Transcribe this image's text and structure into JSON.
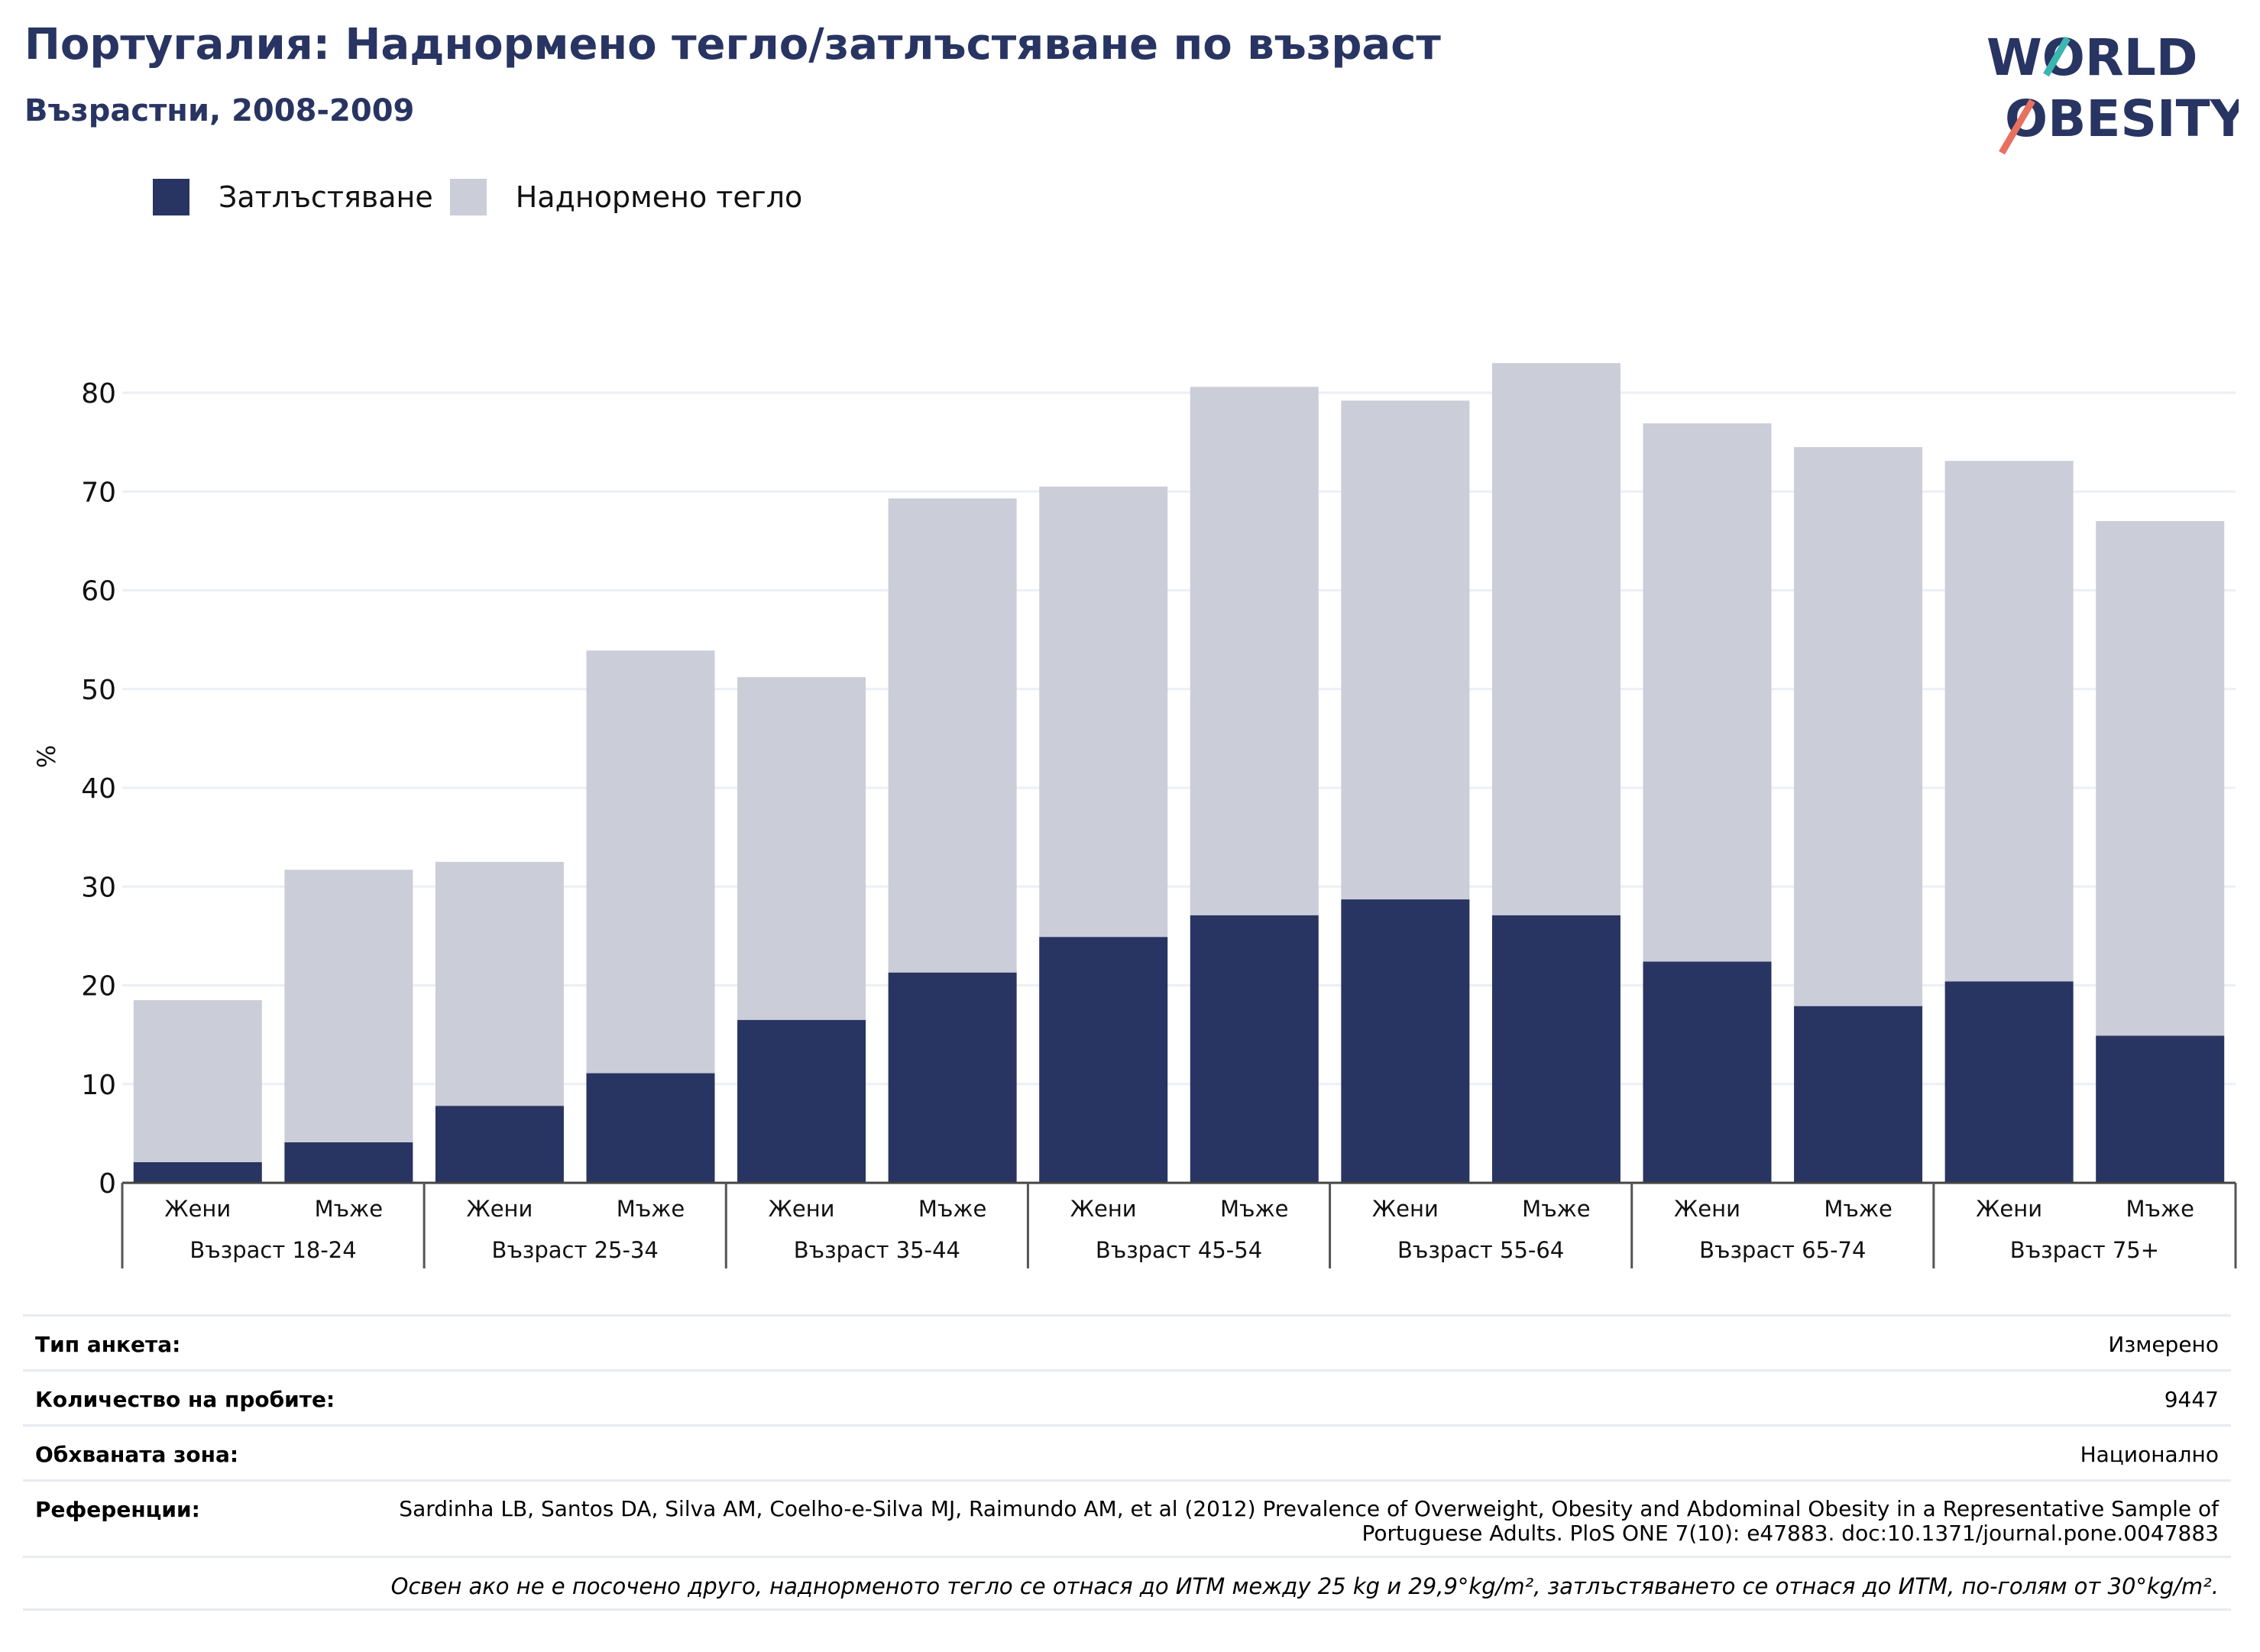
{
  "title": "Португалия: Наднормено тегло/затлъстяване по възраст",
  "subtitle": "Възрастни, 2008-2009",
  "logo": {
    "line1": "WORLD",
    "line2": "OBESITY"
  },
  "legend": [
    {
      "label": "Затлъстяване",
      "color": "#283462"
    },
    {
      "label": "Наднормено тегло",
      "color": "#cbcdd8"
    }
  ],
  "chart_data": {
    "type": "bar",
    "stacked": true,
    "ylabel": "%",
    "ylim": [
      0,
      90
    ],
    "yticks": [
      0,
      10,
      20,
      30,
      40,
      50,
      60,
      70,
      80
    ],
    "grid": true,
    "legend_position": "top-left",
    "groups": [
      "Възраст 18-24",
      "Възраст 25-34",
      "Възраст 35-44",
      "Възраст 45-54",
      "Възраст 55-64",
      "Възраст 65-74",
      "Възраст 75+"
    ],
    "categories": [
      "Жени",
      "Мъже",
      "Жени",
      "Мъже",
      "Жени",
      "Мъже",
      "Жени",
      "Мъже",
      "Жени",
      "Мъже",
      "Жени",
      "Мъже",
      "Жени",
      "Мъже"
    ],
    "series": [
      {
        "name": "Затлъстяване",
        "color": "#283462",
        "values": [
          2.1,
          4.1,
          7.8,
          11.1,
          16.5,
          21.3,
          24.9,
          27.1,
          28.7,
          27.1,
          22.4,
          17.9,
          20.4,
          14.9
        ]
      },
      {
        "name": "Наднормено тегло",
        "color": "#cbcdd8",
        "values": [
          16.4,
          27.6,
          24.7,
          42.8,
          34.7,
          48.0,
          45.6,
          53.5,
          50.5,
          55.9,
          54.5,
          56.6,
          52.7,
          52.1
        ]
      }
    ]
  },
  "info": {
    "survey_type": {
      "label": "Тип анкета:",
      "value": "Измерено"
    },
    "sample_size": {
      "label": "Количество на пробите:",
      "value": "9447"
    },
    "area": {
      "label": "Обхваната зона:",
      "value": "Национално"
    },
    "references": {
      "label": "Референции:",
      "value": "Sardinha LB, Santos DA, Silva AM, Coelho-e-Silva MJ, Raimundo AM, et al (2012) Prevalence of Overweight, Obesity and Abdominal Obesity in a Representative Sample of Portuguese Adults. PloS ONE 7(10): e47883. doc:10.1371/journal.pone.0047883"
    },
    "note": "Освен ако не е посочено друго, наднорменото тегло се отнася до ИТМ между 25 kg и 29,9°kg/m², затлъстяването се отнася до ИТМ, по-голям от 30°kg/m²."
  }
}
